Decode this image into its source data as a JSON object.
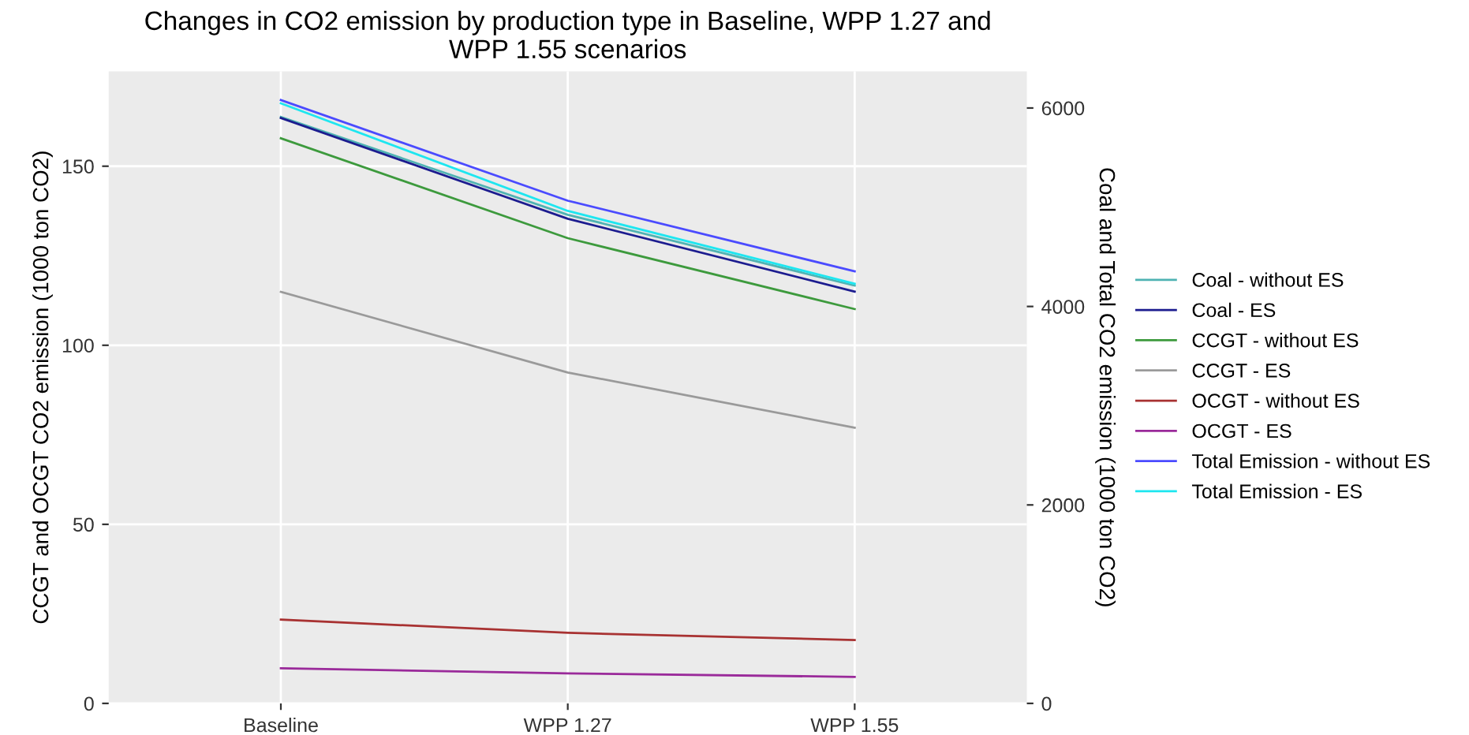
{
  "chart_data": {
    "type": "line",
    "title": "Changes in CO2 emission by production type in Baseline, WPP 1.27 and\nWPP 1.55 scenarios",
    "ylabel": "CCGT and OCGT CO2 emission (1000 ton CO2)",
    "y2label": "Coal and Total CO2 emission (1000 ton CO2)",
    "categories": [
      "Baseline",
      "WPP 1.27",
      "WPP 1.55"
    ],
    "series": [
      {
        "name": "Coal - without ES",
        "color": "#4fb3b3",
        "axis": "y2",
        "values": [
          5910,
          4924,
          4210
        ]
      },
      {
        "name": "Coal - ES",
        "color": "#1c1c8f",
        "axis": "y2",
        "values": [
          5900,
          4884,
          4150
        ]
      },
      {
        "name": "CCGT - without ES",
        "color": "#3d9a3d",
        "values": [
          157.8,
          129.9,
          110.1
        ]
      },
      {
        "name": "CCGT - ES",
        "color": "#9a9a9a",
        "values": [
          114.9,
          92.4,
          77
        ]
      },
      {
        "name": "OCGT - without ES",
        "color": "#a83232",
        "values": [
          23.4,
          19.7,
          17.7
        ]
      },
      {
        "name": "OCGT - ES",
        "color": "#9a2a9a",
        "values": [
          9.8,
          8.4,
          7.4
        ]
      },
      {
        "name": "Total Emission - without ES",
        "color": "#4b4bff",
        "axis": "y2",
        "values": [
          6080,
          5066,
          4354
        ]
      },
      {
        "name": "Total Emission - ES",
        "color": "#1ee6f0",
        "axis": "y2",
        "values": [
          6047,
          4963,
          4229
        ]
      }
    ],
    "ylim": [
      0,
      176.5
    ],
    "yticks": [
      0,
      50,
      100,
      150
    ],
    "y2lim": [
      0,
      6370
    ],
    "y2ticks": [
      0,
      2000,
      4000,
      6000
    ],
    "grid": true,
    "legend": "right",
    "line_style": "solid",
    "marker": "none"
  }
}
